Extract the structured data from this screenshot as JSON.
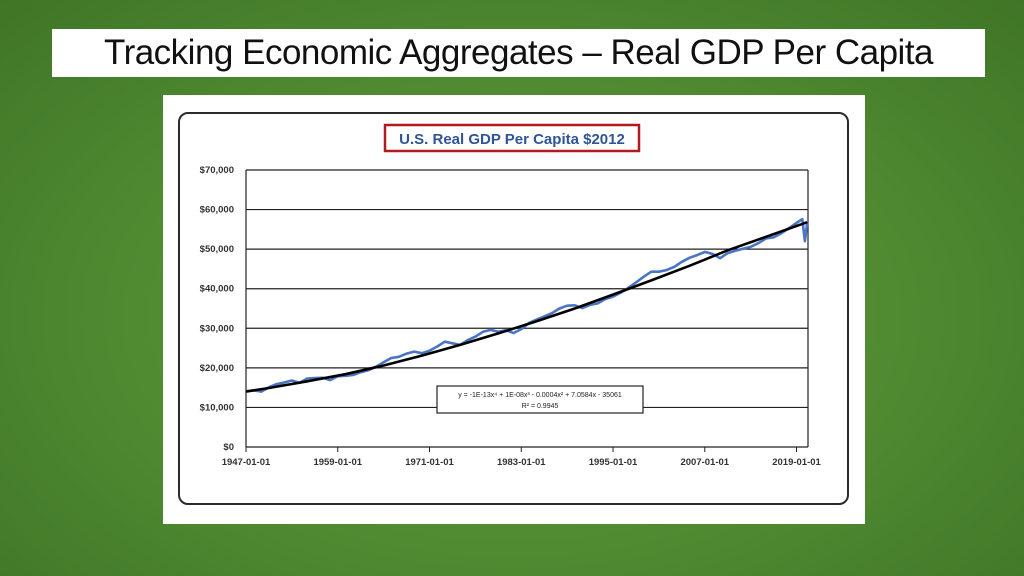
{
  "slide": {
    "title": "Tracking Economic Aggregates – Real GDP Per Capita"
  },
  "chart_data": {
    "type": "line",
    "title": "U.S. Real GDP Per Capita $2012",
    "title_border_color": "#b01c1c",
    "ylim": [
      0,
      70000
    ],
    "xlim": [
      1947,
      2020.5
    ],
    "y_ticks": [
      {
        "value": 0,
        "label": "$0"
      },
      {
        "value": 10000,
        "label": "$10,000"
      },
      {
        "value": 20000,
        "label": "$20,000"
      },
      {
        "value": 30000,
        "label": "$30,000"
      },
      {
        "value": 40000,
        "label": "$40,000"
      },
      {
        "value": 50000,
        "label": "$50,000"
      },
      {
        "value": 60000,
        "label": "$60,000"
      },
      {
        "value": 70000,
        "label": "$70,000"
      }
    ],
    "x_ticks": [
      {
        "value": 1947,
        "label": "1947-01-01"
      },
      {
        "value": 1959,
        "label": "1959-01-01"
      },
      {
        "value": 1971,
        "label": "1971-01-01"
      },
      {
        "value": 1983,
        "label": "1983-01-01"
      },
      {
        "value": 1995,
        "label": "1995-01-01"
      },
      {
        "value": 2007,
        "label": "2007-01-01"
      },
      {
        "value": 2019,
        "label": "2019-01-01"
      }
    ],
    "grid": true,
    "series": [
      {
        "name": "",
        "color": "#4a74c4",
        "x": [
          1947,
          1948,
          1949,
          1950,
          1951,
          1952,
          1953,
          1954,
          1955,
          1956,
          1957,
          1958,
          1959,
          1960,
          1961,
          1962,
          1963,
          1964,
          1965,
          1966,
          1967,
          1968,
          1969,
          1970,
          1971,
          1972,
          1973,
          1974,
          1975,
          1976,
          1977,
          1978,
          1979,
          1980,
          1981,
          1982,
          1983,
          1984,
          1985,
          1986,
          1987,
          1988,
          1989,
          1990,
          1991,
          1992,
          1993,
          1994,
          1995,
          1996,
          1997,
          1998,
          1999,
          2000,
          2001,
          2002,
          2003,
          2004,
          2005,
          2006,
          2007,
          2008,
          2009,
          2010,
          2011,
          2012,
          2013,
          2014,
          2015,
          2016,
          2017,
          2018,
          2019,
          2019.75,
          2020.1,
          2020.4
        ],
        "y": [
          14100,
          14300,
          14000,
          15100,
          15900,
          16300,
          16800,
          16200,
          17300,
          17400,
          17500,
          16900,
          17900,
          18000,
          18200,
          18900,
          19400,
          20300,
          21400,
          22500,
          22800,
          23600,
          24100,
          23700,
          24300,
          25400,
          26600,
          26200,
          25800,
          27000,
          27900,
          29100,
          29600,
          29100,
          29500,
          28800,
          29800,
          31300,
          32200,
          33000,
          33800,
          35000,
          35700,
          35800,
          35100,
          35900,
          36300,
          37400,
          38000,
          39000,
          40200,
          41600,
          43000,
          44300,
          44300,
          44700,
          45500,
          46800,
          47800,
          48500,
          49300,
          48800,
          47700,
          49000,
          49600,
          50100,
          50600,
          51500,
          52700,
          53000,
          54000,
          55300,
          56600,
          57600,
          52000,
          56700
        ]
      }
    ],
    "trendline": {
      "color": "#000000",
      "equation": "y = -1E-13x⁴ + 1E-08x³ - 0.0004x² + 7.0584x - 35061",
      "r_squared": "R² = 0.9945",
      "x": [
        1947,
        1950,
        1955,
        1960,
        1965,
        1970,
        1975,
        1980,
        1985,
        1990,
        1995,
        2000,
        2005,
        2010,
        2015,
        2020.4
      ],
      "y": [
        14000,
        14900,
        16600,
        18400,
        20600,
        23100,
        25800,
        28700,
        31800,
        35000,
        38500,
        42100,
        45800,
        49700,
        53100,
        56800
      ]
    }
  }
}
